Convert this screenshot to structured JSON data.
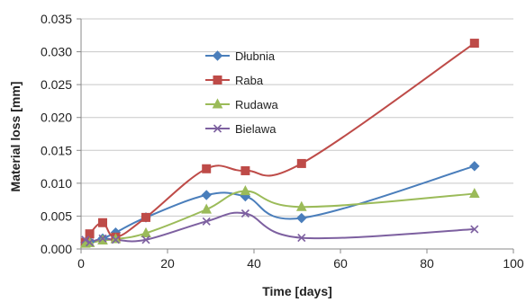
{
  "chart_data": {
    "type": "line",
    "title": "",
    "xlabel": "Time [days]",
    "ylabel": "Material loss [mm]",
    "xlim": [
      0,
      100
    ],
    "ylim": [
      0,
      0.035
    ],
    "x_ticks": [
      0,
      20,
      40,
      60,
      80,
      100
    ],
    "y_ticks": [
      0.0,
      0.005,
      0.01,
      0.015,
      0.02,
      0.025,
      0.03,
      0.035
    ],
    "y_tick_labels": [
      "0.000",
      "0.005",
      "0.010",
      "0.015",
      "0.020",
      "0.025",
      "0.030",
      "0.035"
    ],
    "x_tick_labels": [
      "0",
      "20",
      "40",
      "60",
      "80",
      "100"
    ],
    "grid": true,
    "legend_position": "upper-left inside plot",
    "series": [
      {
        "name": "Dłubnia",
        "color": "#4a7ebb",
        "marker": "diamond",
        "x": [
          1,
          2,
          5,
          8,
          15,
          29,
          38,
          51,
          91
        ],
        "y": [
          0.001,
          0.0011,
          0.0016,
          0.0025,
          0.0048,
          0.0082,
          0.008,
          0.0047,
          0.0126
        ]
      },
      {
        "name": "Raba",
        "color": "#be4b48",
        "marker": "square",
        "x": [
          1,
          2,
          5,
          8,
          15,
          29,
          38,
          51,
          91
        ],
        "y": [
          0.001,
          0.0023,
          0.004,
          0.0018,
          0.0048,
          0.0122,
          0.0119,
          0.013,
          0.0313
        ]
      },
      {
        "name": "Rudawa",
        "color": "#9bbb59",
        "marker": "triangle",
        "x": [
          1,
          2,
          5,
          8,
          15,
          29,
          38,
          51,
          91
        ],
        "y": [
          0.0008,
          0.0009,
          0.0013,
          0.0015,
          0.0024,
          0.006,
          0.0088,
          0.0064,
          0.0084
        ]
      },
      {
        "name": "Bielawa",
        "color": "#7d60a0",
        "marker": "x",
        "x": [
          1,
          2,
          5,
          8,
          15,
          29,
          38,
          51,
          91
        ],
        "y": [
          0.0014,
          0.001,
          0.0016,
          0.0014,
          0.0014,
          0.0042,
          0.0054,
          0.0017,
          0.003
        ]
      }
    ]
  }
}
